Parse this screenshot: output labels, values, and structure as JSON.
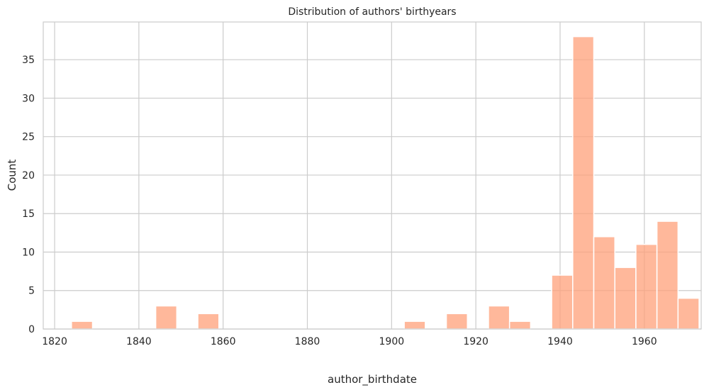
{
  "chart_data": {
    "type": "bar",
    "subtype": "histogram",
    "title": "Distribution of authors' birthyears",
    "xlabel": "author_birthdate",
    "ylabel": "Count",
    "xlim": [
      1817.3,
      1973.5
    ],
    "ylim": [
      0,
      39.9
    ],
    "xticks": [
      1820,
      1840,
      1860,
      1880,
      1900,
      1920,
      1940,
      1960
    ],
    "yticks": [
      0,
      5,
      10,
      15,
      20,
      25,
      30,
      35
    ],
    "grid": true,
    "bar_color": "#ffa07a",
    "bin_width": 5,
    "bins": [
      {
        "x0": 1824,
        "x1": 1829,
        "count": 1
      },
      {
        "x0": 1844,
        "x1": 1849,
        "count": 3
      },
      {
        "x0": 1854,
        "x1": 1859,
        "count": 2
      },
      {
        "x0": 1903,
        "x1": 1908,
        "count": 1
      },
      {
        "x0": 1913,
        "x1": 1918,
        "count": 2
      },
      {
        "x0": 1923,
        "x1": 1928,
        "count": 3
      },
      {
        "x0": 1928,
        "x1": 1933,
        "count": 1
      },
      {
        "x0": 1938,
        "x1": 1943,
        "count": 7
      },
      {
        "x0": 1943,
        "x1": 1948,
        "count": 38
      },
      {
        "x0": 1948,
        "x1": 1953,
        "count": 12
      },
      {
        "x0": 1953,
        "x1": 1958,
        "count": 8
      },
      {
        "x0": 1958,
        "x1": 1963,
        "count": 11
      },
      {
        "x0": 1963,
        "x1": 1968,
        "count": 14
      },
      {
        "x0": 1968,
        "x1": 1973,
        "count": 4
      }
    ]
  }
}
